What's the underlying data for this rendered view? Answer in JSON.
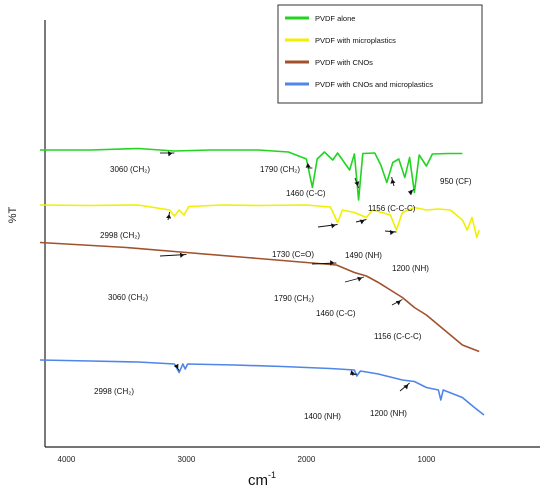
{
  "chart_data": {
    "type": "line",
    "title": "",
    "xlabel": "cm",
    "xlabel_superscript": "-1",
    "ylabel": "%T",
    "xlim": [
      4200,
      200
    ],
    "x_direction": "decreasing",
    "x_ticks": [
      {
        "value": 4000,
        "label": "4000"
      },
      {
        "value": 3000,
        "label": "3000"
      },
      {
        "value": 2000,
        "label": "2000"
      },
      {
        "value": 1000,
        "label": "1000"
      }
    ],
    "y_ticks_shown": false,
    "grid": false,
    "legend_position": "top-right",
    "series": [
      {
        "name": "PVDF alone",
        "color": "#22d422",
        "points": [
          [
            4220,
            1.0
          ],
          [
            3800,
            1.0
          ],
          [
            3400,
            1.3
          ],
          [
            3100,
            0.8
          ],
          [
            2800,
            1.0
          ],
          [
            2400,
            1.0
          ],
          [
            2150,
            0.6
          ],
          [
            2000,
            -0.8
          ],
          [
            1950,
            -6.5
          ],
          [
            1910,
            -0.8
          ],
          [
            1850,
            0.6
          ],
          [
            1780,
            -1.0
          ],
          [
            1740,
            0.4
          ],
          [
            1640,
            -3.0
          ],
          [
            1600,
            0.2
          ],
          [
            1565,
            -9.0
          ],
          [
            1530,
            0.3
          ],
          [
            1430,
            0.4
          ],
          [
            1380,
            -2.0
          ],
          [
            1330,
            -5.5
          ],
          [
            1280,
            -1.5
          ],
          [
            1230,
            -0.8
          ],
          [
            1180,
            -4.5
          ],
          [
            1140,
            -0.5
          ],
          [
            1100,
            -7.5
          ],
          [
            1060,
            0.0
          ],
          [
            1000,
            -2.2
          ],
          [
            950,
            0.2
          ],
          [
            820,
            0.3
          ],
          [
            700,
            0.3
          ]
        ]
      },
      {
        "name": "PVDF with microplastics",
        "color": "#f0f000",
        "points": [
          [
            4220,
            -10.0
          ],
          [
            3800,
            -10.1
          ],
          [
            3400,
            -10.0
          ],
          [
            3140,
            -11.0
          ],
          [
            3100,
            -12.2
          ],
          [
            3060,
            -11.0
          ],
          [
            3020,
            -12.0
          ],
          [
            2980,
            -10.3
          ],
          [
            2700,
            -10.0
          ],
          [
            2400,
            -10.1
          ],
          [
            2000,
            -10.0
          ],
          [
            1800,
            -10.4
          ],
          [
            1740,
            -13.5
          ],
          [
            1700,
            -11.0
          ],
          [
            1600,
            -11.5
          ],
          [
            1500,
            -12.5
          ],
          [
            1450,
            -11.0
          ],
          [
            1400,
            -11.3
          ],
          [
            1300,
            -12.0
          ],
          [
            1250,
            -15.0
          ],
          [
            1200,
            -11.5
          ],
          [
            1100,
            -10.5
          ],
          [
            1000,
            -11.0
          ],
          [
            900,
            -10.8
          ],
          [
            800,
            -11.0
          ],
          [
            700,
            -13.0
          ],
          [
            660,
            -15.0
          ],
          [
            620,
            -12.5
          ],
          [
            580,
            -16.5
          ],
          [
            560,
            -15.0
          ]
        ]
      },
      {
        "name": "PVDF with CNOs",
        "color": "#a0522d",
        "points": [
          [
            4220,
            -17.5
          ],
          [
            4000,
            -17.8
          ],
          [
            3500,
            -18.5
          ],
          [
            3000,
            -19.5
          ],
          [
            2500,
            -20.5
          ],
          [
            2000,
            -21.5
          ],
          [
            1750,
            -22.0
          ],
          [
            1600,
            -23.5
          ],
          [
            1500,
            -24.2
          ],
          [
            1400,
            -25.5
          ],
          [
            1300,
            -27.0
          ],
          [
            1200,
            -28.5
          ],
          [
            1100,
            -30.5
          ],
          [
            1000,
            -32.0
          ],
          [
            900,
            -34.0
          ],
          [
            800,
            -36.0
          ],
          [
            700,
            -38.0
          ],
          [
            560,
            -39.3
          ]
        ]
      },
      {
        "name": "PVDF with CNOs and microplastics",
        "color": "#4f86e8",
        "points": [
          [
            4220,
            -41.0
          ],
          [
            3800,
            -41.2
          ],
          [
            3400,
            -41.4
          ],
          [
            3100,
            -41.8
          ],
          [
            3060,
            -43.5
          ],
          [
            3030,
            -41.8
          ],
          [
            3010,
            -42.8
          ],
          [
            2990,
            -41.8
          ],
          [
            2600,
            -42.0
          ],
          [
            2200,
            -42.3
          ],
          [
            1800,
            -42.7
          ],
          [
            1600,
            -43.0
          ],
          [
            1580,
            -44.2
          ],
          [
            1550,
            -43.2
          ],
          [
            1400,
            -43.8
          ],
          [
            1200,
            -45.0
          ],
          [
            1100,
            -45.3
          ],
          [
            1000,
            -46.5
          ],
          [
            900,
            -47.0
          ],
          [
            880,
            -49.0
          ],
          [
            860,
            -47.0
          ],
          [
            700,
            -48.5
          ],
          [
            600,
            -50.5
          ],
          [
            520,
            -52.0
          ]
        ]
      }
    ],
    "annotations": [
      {
        "text": "3060 (CH₂)",
        "series": "PVDF alone",
        "x": 3100,
        "y": 0.8
      },
      {
        "text": "1790 (CH₂)",
        "series": "PVDF alone",
        "x": 1950,
        "y": -3.0
      },
      {
        "text": "1460 (C-C)",
        "series": "PVDF alone",
        "x": 1565,
        "y": -7.0
      },
      {
        "text": "1156 (C-C-C)",
        "series": "PVDF alone",
        "x": 1290,
        "y": -4.0
      },
      {
        "text": "950 (CF)",
        "series": "PVDF alone",
        "x": 1100,
        "y": -6.5
      },
      {
        "text": "2998 (CH₂)",
        "series": "PVDF with microplastics",
        "x": 3140,
        "y": -11.0
      },
      {
        "text": "1730 (C=O)",
        "series": "PVDF with microplastics",
        "x": 1740,
        "y": -13.5
      },
      {
        "text": "1490 (NH)",
        "series": "PVDF with microplastics",
        "x": 1500,
        "y": -12.5
      },
      {
        "text": "1200 (NH)",
        "series": "PVDF with microplastics",
        "x": 1250,
        "y": -15.0
      },
      {
        "text": "3060 (CH₂)",
        "series": "PVDF with CNOs",
        "x": 3000,
        "y": -19.5
      },
      {
        "text": "1790 (CH₂)",
        "series": "PVDF with CNOs",
        "x": 1750,
        "y": -22.0
      },
      {
        "text": "1460 (C-C)",
        "series": "PVDF with CNOs",
        "x": 1520,
        "y": -24.0
      },
      {
        "text": "1156 (C-C-C)",
        "series": "PVDF with CNOs",
        "x": 1200,
        "y": -28.5
      },
      {
        "text": "2998 (CH₂)",
        "series": "PVDF with CNOs and microplastics",
        "x": 3060,
        "y": -43.5
      },
      {
        "text": "1400 (NH)",
        "series": "PVDF with CNOs and microplastics",
        "x": 1580,
        "y": -44.2
      },
      {
        "text": "1200 (NH)",
        "series": "PVDF with CNOs and microplastics",
        "x": 1140,
        "y": -45.2
      }
    ]
  }
}
